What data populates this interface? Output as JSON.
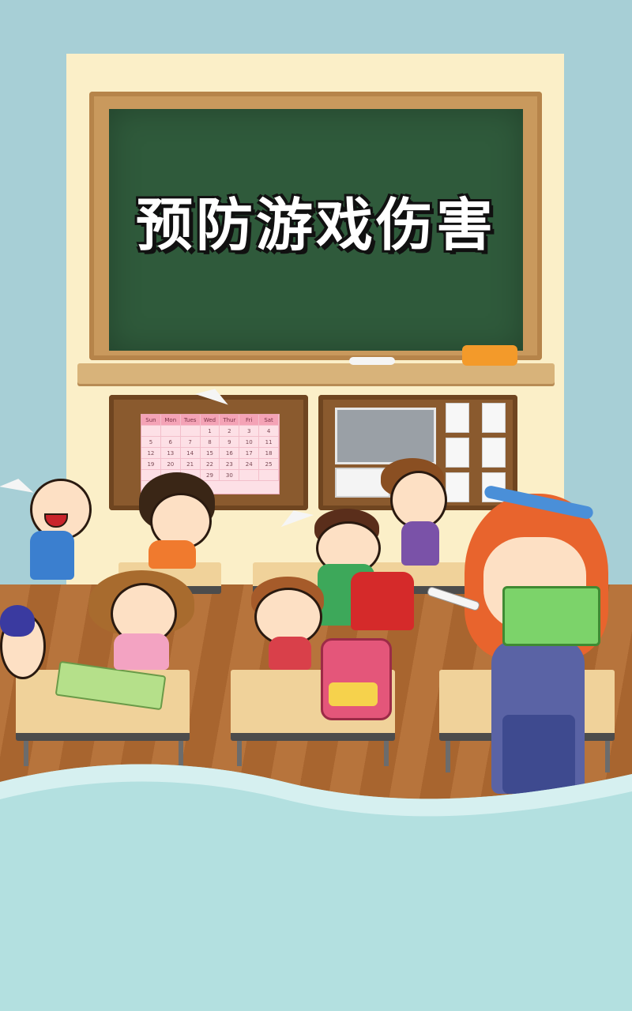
{
  "app": {
    "title": "预防游戏伤害"
  },
  "calendar": {
    "days": [
      "Sun",
      "Mon",
      "Tues",
      "Wed",
      "Thur",
      "Fri",
      "Sat"
    ],
    "rows": [
      [
        "",
        "",
        "",
        "1",
        "2",
        "3",
        "4"
      ],
      [
        "5",
        "6",
        "7",
        "8",
        "9",
        "10",
        "11"
      ],
      [
        "12",
        "13",
        "14",
        "15",
        "16",
        "17",
        "18"
      ],
      [
        "19",
        "20",
        "21",
        "22",
        "23",
        "24",
        "25"
      ],
      [
        "",
        "",
        "",
        "29",
        "30",
        "",
        ""
      ]
    ]
  },
  "colors": {
    "background": "#a7cfd6",
    "chalkboard": "#2f5a3b",
    "wave": "#b3e0e0"
  }
}
